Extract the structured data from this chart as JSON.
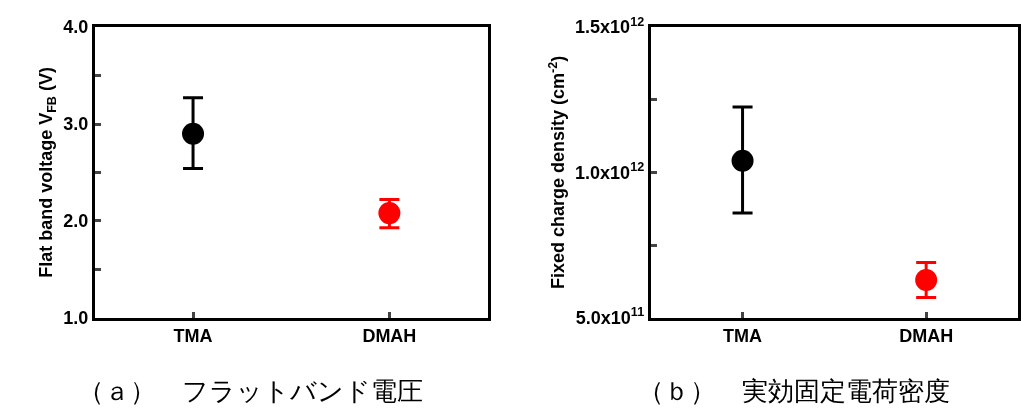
{
  "chart_data": [
    {
      "type": "scatter",
      "categories": [
        "TMA",
        "DMAH"
      ],
      "ylabel": "Flat band voltage V$_{FB}$ (V)",
      "series": [
        {
          "values": [
            2.9,
            2.08
          ],
          "colors": [
            "#000000",
            "#ff0000"
          ],
          "errors": [
            [
              2.54,
              3.27
            ],
            [
              1.93,
              2.22
            ]
          ]
        }
      ],
      "ylim": [
        1.0,
        4.0
      ],
      "yticks": [
        {
          "value": 1.0,
          "label": "1.0"
        },
        {
          "value": 1.5,
          "label": null
        },
        {
          "value": 2.0,
          "label": "2.0"
        },
        {
          "value": 2.5,
          "label": null
        },
        {
          "value": 3.0,
          "label": "3.0"
        },
        {
          "value": 3.5,
          "label": null
        },
        {
          "value": 4.0,
          "label": "4.0"
        }
      ],
      "marker": "circle",
      "annotations": [
        "（ａ）　フラットバンド電圧"
      ]
    },
    {
      "type": "scatter",
      "categories": [
        "TMA",
        "DMAH"
      ],
      "ylabel": "Fixed charge density (cm$^{-2}$)",
      "series": [
        {
          "values": [
            1040000000000.0,
            630000000000.0
          ],
          "colors": [
            "#000000",
            "#ff0000"
          ],
          "errors": [
            [
              860000000000.0,
              1225000000000.0
            ],
            [
              570000000000.0,
              690000000000.0
            ]
          ]
        }
      ],
      "ylim": [
        500000000000.0,
        1500000000000.0
      ],
      "yticks": [
        {
          "value": 500000000000.0,
          "label": "5.0x10$^{11}$"
        },
        {
          "value": 750000000000.0,
          "label": null
        },
        {
          "value": 1000000000000.0,
          "label": "1.0x10$^{12}$"
        },
        {
          "value": 1250000000000.0,
          "label": null
        },
        {
          "value": 1500000000000.0,
          "label": "1.5x10$^{12}$"
        }
      ],
      "marker": "circle",
      "annotations": [
        "（ｂ）　実効固定電荷密度"
      ]
    }
  ]
}
